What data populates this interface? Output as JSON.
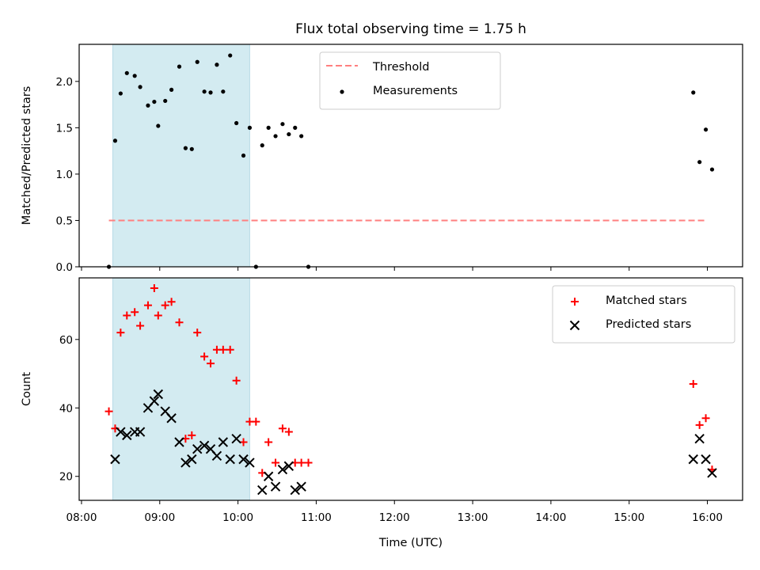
{
  "chart_data": {
    "title": "Flux total observing time = 1.75 h",
    "xlabel": "Time (UTC)",
    "x_tick_labels": [
      "08:00",
      "09:00",
      "10:00",
      "11:00",
      "12:00",
      "13:00",
      "14:00",
      "15:00",
      "16:00"
    ],
    "x_ticks": [
      8,
      9,
      10,
      11,
      12,
      13,
      14,
      15,
      16
    ],
    "xlim": [
      7.97,
      16.45
    ],
    "shaded_interval": [
      8.4,
      10.15
    ],
    "shade_color": "#d3ebf1",
    "panels": [
      {
        "type": "scatter",
        "ylabel": "Matched/Predicted stars",
        "ylim": [
          0,
          2.4
        ],
        "y_ticks": [
          0.0,
          0.5,
          1.0,
          1.5,
          2.0
        ],
        "y_tick_labels": [
          "0.0",
          "0.5",
          "1.0",
          "1.5",
          "2.0"
        ],
        "legend_position": "upper-center",
        "threshold": {
          "name": "Threshold",
          "value": 0.5,
          "x_range": [
            8.35,
            16.0
          ],
          "color": "#ff7f7f"
        },
        "series": [
          {
            "name": "Measurements",
            "color": "#000000",
            "marker": "dot",
            "points": [
              [
                8.35,
                0.0
              ],
              [
                8.43,
                1.36
              ],
              [
                8.5,
                1.87
              ],
              [
                8.58,
                2.09
              ],
              [
                8.68,
                2.06
              ],
              [
                8.75,
                1.94
              ],
              [
                8.85,
                1.74
              ],
              [
                8.93,
                1.78
              ],
              [
                8.98,
                1.52
              ],
              [
                9.07,
                1.79
              ],
              [
                9.15,
                1.91
              ],
              [
                9.25,
                2.16
              ],
              [
                9.33,
                1.28
              ],
              [
                9.41,
                1.27
              ],
              [
                9.48,
                2.21
              ],
              [
                9.57,
                1.89
              ],
              [
                9.65,
                1.88
              ],
              [
                9.73,
                2.18
              ],
              [
                9.81,
                1.89
              ],
              [
                9.9,
                2.28
              ],
              [
                9.98,
                1.55
              ],
              [
                10.07,
                1.2
              ],
              [
                10.15,
                1.5
              ],
              [
                10.23,
                0.0
              ],
              [
                10.31,
                1.31
              ],
              [
                10.39,
                1.5
              ],
              [
                10.48,
                1.41
              ],
              [
                10.57,
                1.54
              ],
              [
                10.65,
                1.43
              ],
              [
                10.73,
                1.5
              ],
              [
                10.81,
                1.41
              ],
              [
                10.9,
                0.0
              ],
              [
                15.82,
                1.88
              ],
              [
                15.9,
                1.13
              ],
              [
                15.98,
                1.48
              ],
              [
                16.06,
                1.05
              ]
            ]
          }
        ]
      },
      {
        "type": "scatter",
        "ylabel": "Count",
        "ylim": [
          13,
          78
        ],
        "y_ticks": [
          20,
          40,
          60
        ],
        "y_tick_labels": [
          "20",
          "40",
          "60"
        ],
        "legend_position": "upper-right",
        "series": [
          {
            "name": "Matched stars",
            "color": "#ff0000",
            "marker": "plus",
            "points": [
              [
                8.35,
                39
              ],
              [
                8.43,
                34
              ],
              [
                8.5,
                62
              ],
              [
                8.58,
                67
              ],
              [
                8.68,
                68
              ],
              [
                8.75,
                64
              ],
              [
                8.85,
                70
              ],
              [
                8.93,
                75
              ],
              [
                8.98,
                67
              ],
              [
                9.07,
                70
              ],
              [
                9.15,
                71
              ],
              [
                9.25,
                65
              ],
              [
                9.33,
                31
              ],
              [
                9.41,
                32
              ],
              [
                9.48,
                62
              ],
              [
                9.57,
                55
              ],
              [
                9.65,
                53
              ],
              [
                9.73,
                57
              ],
              [
                9.81,
                57
              ],
              [
                9.9,
                57
              ],
              [
                9.98,
                48
              ],
              [
                10.07,
                30
              ],
              [
                10.15,
                36
              ],
              [
                10.23,
                36
              ],
              [
                10.31,
                21
              ],
              [
                10.39,
                30
              ],
              [
                10.48,
                24
              ],
              [
                10.57,
                34
              ],
              [
                10.65,
                33
              ],
              [
                10.73,
                24
              ],
              [
                10.81,
                24
              ],
              [
                10.9,
                24
              ],
              [
                15.82,
                47
              ],
              [
                15.9,
                35
              ],
              [
                15.98,
                37
              ],
              [
                16.06,
                22
              ]
            ]
          },
          {
            "name": "Predicted stars",
            "color": "#000000",
            "marker": "x",
            "points": [
              [
                8.43,
                25
              ],
              [
                8.5,
                33
              ],
              [
                8.58,
                32
              ],
              [
                8.68,
                33
              ],
              [
                8.75,
                33
              ],
              [
                8.85,
                40
              ],
              [
                8.93,
                42
              ],
              [
                8.98,
                44
              ],
              [
                9.07,
                39
              ],
              [
                9.15,
                37
              ],
              [
                9.25,
                30
              ],
              [
                9.33,
                24
              ],
              [
                9.41,
                25
              ],
              [
                9.48,
                28
              ],
              [
                9.57,
                29
              ],
              [
                9.65,
                28
              ],
              [
                9.73,
                26
              ],
              [
                9.81,
                30
              ],
              [
                9.9,
                25
              ],
              [
                9.98,
                31
              ],
              [
                10.07,
                25
              ],
              [
                10.15,
                24
              ],
              [
                10.31,
                16
              ],
              [
                10.39,
                20
              ],
              [
                10.48,
                17
              ],
              [
                10.57,
                22
              ],
              [
                10.65,
                23
              ],
              [
                10.73,
                16
              ],
              [
                10.81,
                17
              ],
              [
                15.82,
                25
              ],
              [
                15.9,
                31
              ],
              [
                15.98,
                25
              ],
              [
                16.06,
                21
              ]
            ]
          }
        ]
      }
    ]
  }
}
